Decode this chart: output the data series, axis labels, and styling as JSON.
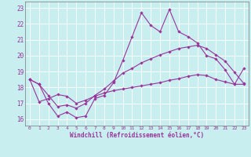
{
  "xlabel": "Windchill (Refroidissement éolien,°C)",
  "background_color": "#c8eef0",
  "line_color": "#993399",
  "grid_color": "#ffffff",
  "xlim": [
    -0.5,
    23.5
  ],
  "ylim": [
    15.6,
    23.4
  ],
  "xticks": [
    0,
    1,
    2,
    3,
    4,
    5,
    6,
    7,
    8,
    9,
    10,
    11,
    12,
    13,
    14,
    15,
    16,
    17,
    18,
    19,
    20,
    21,
    22,
    23
  ],
  "yticks": [
    16,
    17,
    18,
    19,
    20,
    21,
    22,
    23
  ],
  "line1_x": [
    0,
    1,
    2,
    3,
    4,
    5,
    6,
    7,
    8,
    9,
    10,
    11,
    12,
    13,
    14,
    15,
    16,
    17,
    18,
    19,
    20,
    21,
    22,
    23
  ],
  "line1_y": [
    18.5,
    18.2,
    17.0,
    16.2,
    16.45,
    16.1,
    16.2,
    17.3,
    17.5,
    18.3,
    19.7,
    21.2,
    22.7,
    21.9,
    21.5,
    22.9,
    21.5,
    21.2,
    20.8,
    20.0,
    19.8,
    19.1,
    18.2,
    19.2
  ],
  "line2_x": [
    0,
    1,
    2,
    3,
    4,
    5,
    6,
    7,
    8,
    9,
    10,
    11,
    12,
    13,
    14,
    15,
    16,
    17,
    18,
    19,
    20,
    21,
    22,
    23
  ],
  "line2_y": [
    18.5,
    18.2,
    17.5,
    16.8,
    16.9,
    16.7,
    17.0,
    17.5,
    17.9,
    18.4,
    18.9,
    19.2,
    19.55,
    19.8,
    20.05,
    20.25,
    20.45,
    20.55,
    20.65,
    20.45,
    20.05,
    19.65,
    18.95,
    18.25
  ],
  "line3_x": [
    0,
    1,
    2,
    3,
    4,
    5,
    6,
    7,
    8,
    9,
    10,
    11,
    12,
    13,
    14,
    15,
    16,
    17,
    18,
    19,
    20,
    21,
    22,
    23
  ],
  "line3_y": [
    18.5,
    17.1,
    17.3,
    17.55,
    17.45,
    17.0,
    17.2,
    17.45,
    17.65,
    17.8,
    17.9,
    18.0,
    18.1,
    18.2,
    18.3,
    18.45,
    18.55,
    18.7,
    18.8,
    18.75,
    18.5,
    18.35,
    18.2,
    18.2
  ]
}
